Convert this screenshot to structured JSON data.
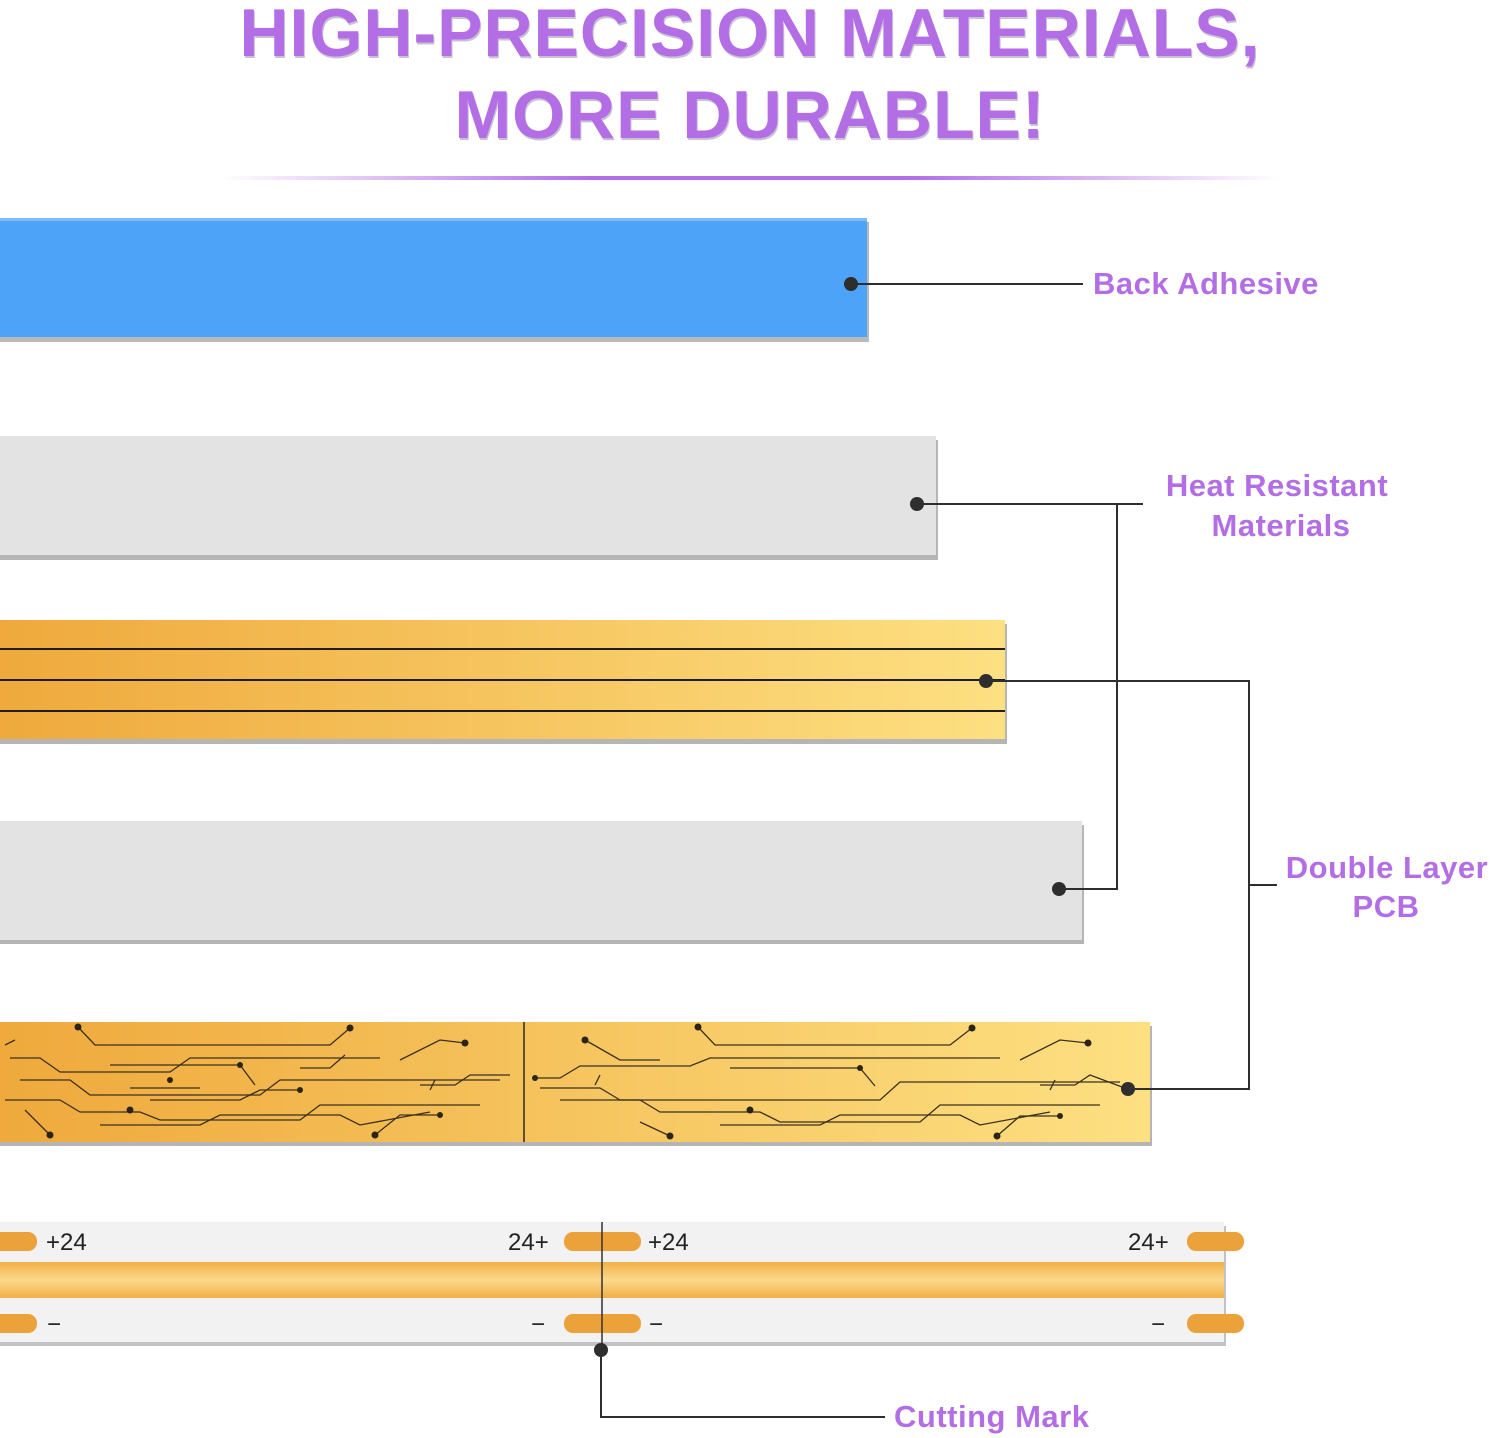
{
  "title": {
    "line1": "HIGH-PRECISION MATERIALS,",
    "line2": "MORE DURABLE!"
  },
  "labels": {
    "back_adhesive": "Back Adhesive",
    "heat_resistant_line1": "Heat Resistant",
    "heat_resistant_line2": "Materials",
    "double_layer_line1": "Double Layer",
    "double_layer_line2": "PCB",
    "cutting_mark": "Cutting Mark"
  },
  "led_strip": {
    "plus_left_1": "+24",
    "plus_right_1": "24+",
    "plus_left_2": "+24",
    "plus_right_2": "24+",
    "minus": "−"
  },
  "colors": {
    "accent": "#b36ee6",
    "adhesive": "#4da3f7",
    "insulation": "#e3e3e3",
    "copper_dark": "#efa93c",
    "copper_light": "#fde082"
  }
}
